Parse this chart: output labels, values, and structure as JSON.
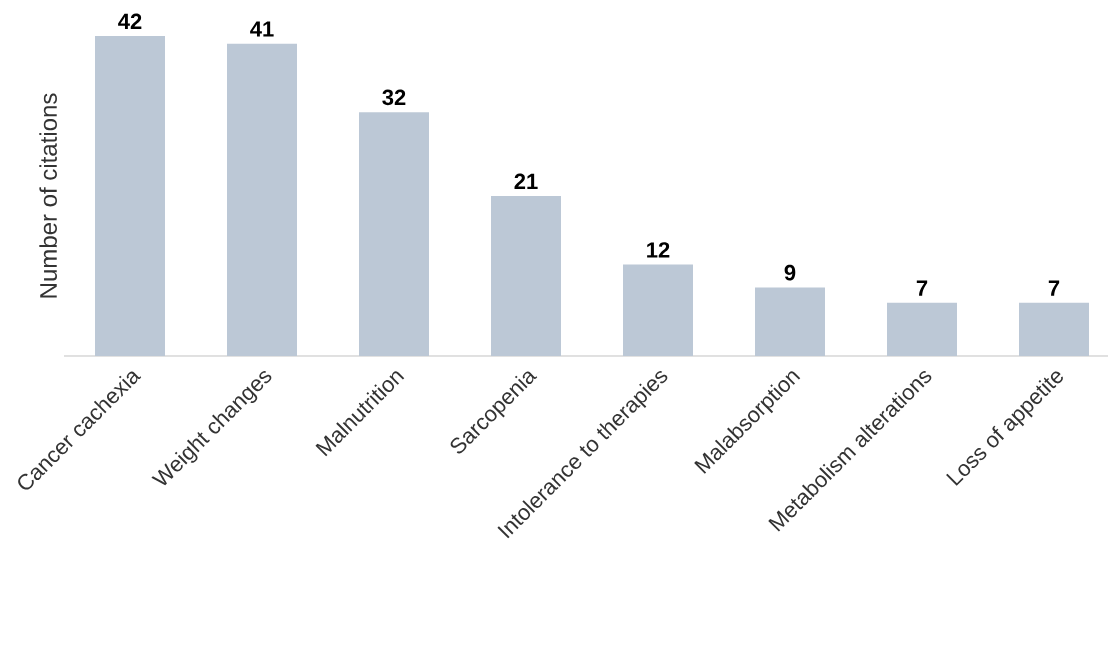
{
  "chart_data": {
    "type": "bar",
    "ylabel": "Number of citations",
    "categories": [
      "Cancer cachexia",
      "Weight changes",
      "Malnutrition",
      "Sarcopenia",
      "Intolerance to therapies",
      "Malabsorption",
      "Metabolism alterations",
      "Loss of appetite"
    ],
    "values": [
      42,
      41,
      32,
      21,
      12,
      9,
      7,
      7
    ],
    "color": "#bcc8d6",
    "data_labels": true
  }
}
